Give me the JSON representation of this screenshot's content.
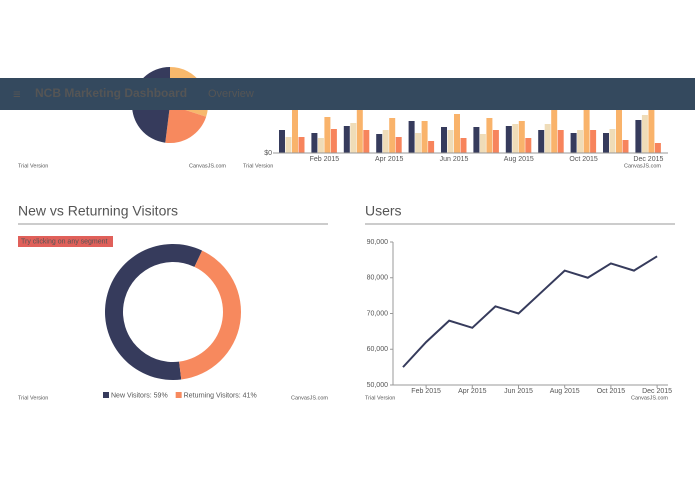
{
  "navbar": {
    "menu_icon": "≡",
    "title": "NCB Marketing Dashboard",
    "link": "Overview"
  },
  "chart_data": [
    {
      "type": "pie",
      "values": [
        30,
        22,
        48
      ],
      "colors": [
        "#f7b86c",
        "#f7895e",
        "#363b5c"
      ],
      "watermark": "Trial Version",
      "credit": "CanvasJS.com"
    },
    {
      "type": "bar",
      "categories": [
        null,
        "Feb 2015",
        null,
        "Apr 2015",
        null,
        "Jun 2015",
        null,
        "Aug 2015",
        null,
        "Oct 2015",
        null,
        "Dec 2015"
      ],
      "series": [
        {
          "color": "#363b5c",
          "values": [
            23,
            20,
            27,
            19,
            32,
            26,
            26,
            27,
            23,
            20,
            20,
            33
          ]
        },
        {
          "color": "#efdcb8",
          "values": [
            16,
            15,
            30,
            23,
            20,
            23,
            19,
            29,
            29,
            23,
            24,
            38
          ]
        },
        {
          "color": "#f9b36b",
          "values": [
            43,
            36,
            43,
            35,
            32,
            39,
            35,
            32,
            43,
            43,
            45,
            45
          ]
        },
        {
          "color": "#f7845c",
          "values": [
            16,
            24,
            23,
            16,
            12,
            15,
            23,
            15,
            23,
            23,
            13,
            10
          ]
        }
      ],
      "ylim": [
        0,
        50
      ],
      "yticks": [
        {
          "value": 0,
          "label": "$0"
        }
      ],
      "watermark": "Trial Version",
      "credit": "CanvasJS.com"
    },
    {
      "type": "doughnut",
      "title": "New vs Returning Visitors",
      "hint": "Try clicking on any segment",
      "values": [
        59,
        41
      ],
      "value_labels": [
        "New Visitors: 59%",
        "Returning Visitors: 41%"
      ],
      "colors": [
        "#363b5c",
        "#f7895e"
      ],
      "watermark": "Trial Version",
      "credit": "CanvasJS.com"
    },
    {
      "type": "line",
      "title": "Users",
      "x": [
        null,
        "Feb 2015",
        null,
        "Apr 2015",
        null,
        "Jun 2015",
        null,
        "Aug 2015",
        null,
        "Oct 2015",
        null,
        "Dec 2015"
      ],
      "values": [
        55000,
        62000,
        68000,
        66000,
        72000,
        70000,
        76000,
        82000,
        80000,
        84000,
        82000,
        86000
      ],
      "color": "#363b5c",
      "ylim": [
        50000,
        90000
      ],
      "yticks": [
        {
          "value": 50000,
          "label": "50,000"
        },
        {
          "value": 60000,
          "label": "60,000"
        },
        {
          "value": 70000,
          "label": "70,000"
        },
        {
          "value": 80000,
          "label": "80,000"
        },
        {
          "value": 90000,
          "label": "90,000"
        }
      ],
      "watermark": "Trial Version",
      "credit": "CanvasJS.com"
    }
  ]
}
